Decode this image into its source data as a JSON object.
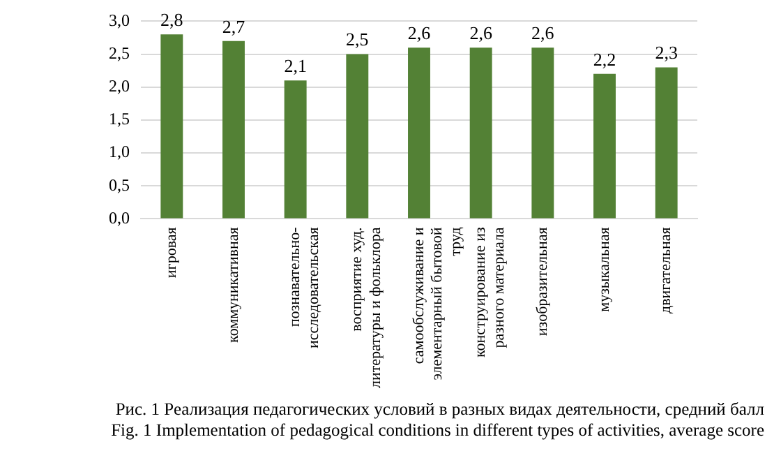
{
  "chart_data": {
    "type": "bar",
    "categories": [
      "игровая",
      "коммуникативная",
      "познавательно-исследовательская",
      "восприятие худ. литературы и фольклора",
      "самообслуживание и элементарный бытовой труд",
      "конструирование из разного материала",
      "изобразительная",
      "музыкальная",
      "двигательная"
    ],
    "values": [
      2.8,
      2.7,
      2.1,
      2.5,
      2.6,
      2.6,
      2.6,
      2.2,
      2.3
    ],
    "value_labels": [
      "2,8",
      "2,7",
      "2,1",
      "2,5",
      "2,6",
      "2,6",
      "2,6",
      "2,2",
      "2,3"
    ],
    "color": "#538135",
    "ylim": [
      0,
      3
    ],
    "yticks": [
      {
        "value": 0,
        "label": "0,0"
      },
      {
        "value": 0.5,
        "label": "0,5"
      },
      {
        "value": 1,
        "label": "1,0"
      },
      {
        "value": 1.5,
        "label": "1,5"
      },
      {
        "value": 2,
        "label": "2,0"
      },
      {
        "value": 2.5,
        "label": "2,5"
      },
      {
        "value": 3,
        "label": "3,0"
      }
    ],
    "grid": "y",
    "annotations": [
      "Рис. 1 Реализация педагогических условий в разных видах деятельности, средний балл",
      "Fig. 1 Implementation of pedagogical conditions in different types of activities, average score"
    ]
  }
}
